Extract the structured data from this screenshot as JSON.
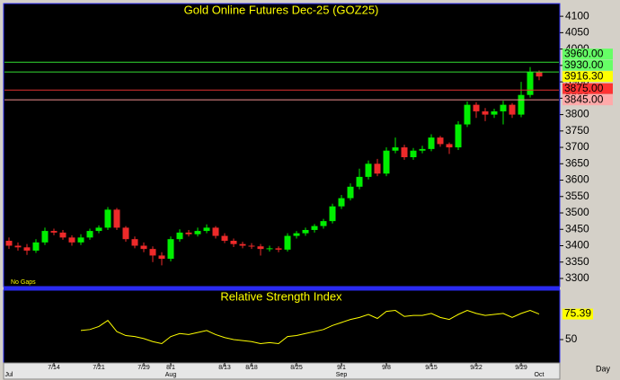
{
  "chart_data": [
    {
      "type": "candlestick",
      "title": "Gold Online Futures Dec-25 (GOZ25)",
      "note": "No Gaps",
      "x_label": "Day",
      "categories": [
        null,
        null,
        null,
        null,
        null,
        "7/14",
        null,
        null,
        null,
        null,
        "7/21",
        null,
        null,
        null,
        null,
        "7/29",
        null,
        null,
        "8/1",
        null,
        null,
        null,
        null,
        null,
        "8/13",
        null,
        null,
        "8/18",
        null,
        null,
        null,
        null,
        "8/25",
        null,
        null,
        null,
        null,
        "9/1",
        null,
        null,
        null,
        null,
        "9/8",
        null,
        null,
        null,
        null,
        "9/15",
        null,
        null,
        null,
        null,
        "9/22",
        null,
        null,
        null,
        null,
        "9/29",
        null,
        null
      ],
      "months": [
        "Jul",
        null,
        null,
        null,
        null,
        null,
        null,
        null,
        null,
        null,
        null,
        null,
        null,
        null,
        null,
        null,
        null,
        null,
        "Aug",
        null,
        null,
        null,
        null,
        null,
        null,
        null,
        null,
        null,
        null,
        null,
        null,
        null,
        null,
        null,
        null,
        null,
        null,
        "Sep",
        null,
        null,
        null,
        null,
        null,
        null,
        null,
        null,
        null,
        null,
        null,
        null,
        null,
        null,
        null,
        null,
        null,
        null,
        null,
        null,
        null,
        "Oct"
      ],
      "open": [
        3415,
        3400,
        3395,
        3385,
        3410,
        3445,
        3440,
        3425,
        3410,
        3425,
        3445,
        3455,
        3510,
        3455,
        3420,
        3400,
        3390,
        3370,
        3360,
        3420,
        3440,
        3435,
        3445,
        3455,
        3430,
        3415,
        3405,
        3400,
        3398,
        3390,
        3392,
        3388,
        3430,
        3438,
        3448,
        3460,
        3475,
        3520,
        3545,
        3580,
        3610,
        3650,
        3620,
        3690,
        3700,
        3670,
        3690,
        3695,
        3730,
        3710,
        3700,
        3770,
        3830,
        3810,
        3800,
        3810,
        3830,
        3800,
        3860,
        3930
      ],
      "high": [
        3425,
        3410,
        3405,
        3420,
        3455,
        3452,
        3448,
        3432,
        3435,
        3452,
        3462,
        3518,
        3515,
        3460,
        3428,
        3410,
        3398,
        3380,
        3428,
        3450,
        3448,
        3455,
        3465,
        3460,
        3438,
        3422,
        3412,
        3408,
        3405,
        3400,
        3398,
        3438,
        3445,
        3455,
        3466,
        3482,
        3528,
        3555,
        3590,
        3635,
        3660,
        3665,
        3700,
        3730,
        3708,
        3698,
        3705,
        3740,
        3735,
        3715,
        3780,
        3840,
        3838,
        3820,
        3818,
        3842,
        3835,
        3900,
        3945,
        3935
      ],
      "low": [
        3390,
        3385,
        3372,
        3378,
        3402,
        3432,
        3418,
        3400,
        3402,
        3418,
        3438,
        3448,
        3448,
        3412,
        3392,
        3380,
        3350,
        3340,
        3352,
        3412,
        3428,
        3428,
        3438,
        3422,
        3408,
        3396,
        3392,
        3390,
        3370,
        3382,
        3380,
        3382,
        3422,
        3430,
        3440,
        3452,
        3468,
        3512,
        3538,
        3572,
        3602,
        3612,
        3612,
        3682,
        3662,
        3662,
        3682,
        3688,
        3702,
        3680,
        3692,
        3762,
        3790,
        3780,
        3790,
        3770,
        3790,
        3792,
        3852,
        3905
      ],
      "close": [
        3400,
        3395,
        3385,
        3410,
        3445,
        3440,
        3425,
        3410,
        3425,
        3445,
        3455,
        3510,
        3455,
        3420,
        3400,
        3390,
        3370,
        3360,
        3420,
        3440,
        3435,
        3445,
        3455,
        3430,
        3415,
        3405,
        3400,
        3398,
        3390,
        3392,
        3388,
        3430,
        3438,
        3448,
        3460,
        3475,
        3520,
        3545,
        3580,
        3610,
        3650,
        3620,
        3690,
        3700,
        3670,
        3690,
        3695,
        3730,
        3710,
        3700,
        3770,
        3830,
        3810,
        3800,
        3810,
        3830,
        3800,
        3860,
        3930,
        3916.3
      ],
      "last_label": "3916.30",
      "last_color": "#ffff00",
      "up_color": "#00ee00",
      "down_color": "#ee2a2a",
      "levels": [
        {
          "value": 3960,
          "label": "3960.00",
          "color": "#33dd33",
          "label_color": "#66ff66"
        },
        {
          "value": 3930,
          "label": "3930.00",
          "color": "#33dd33",
          "label_color": "#66ff66"
        },
        {
          "value": 3875,
          "label": "3875.00",
          "color": "#e03030",
          "label_color": "#ff3333"
        },
        {
          "value": 3845,
          "label": "3845.00",
          "color": "#f09090",
          "label_color": "#ffaaaa"
        }
      ],
      "ylim": [
        3278,
        4136
      ],
      "yticks": [
        3300,
        3350,
        3400,
        3450,
        3500,
        3550,
        3600,
        3650,
        3700,
        3750,
        3800,
        3850,
        3900,
        3950,
        4000,
        4050,
        4100
      ]
    },
    {
      "type": "line",
      "title": "Relative Strength Index",
      "color": "#ffff00",
      "values": [
        null,
        null,
        null,
        null,
        null,
        null,
        null,
        null,
        59,
        60,
        63,
        69,
        58,
        54,
        53,
        51,
        48,
        46,
        53,
        56,
        55,
        57,
        59,
        55,
        52,
        50,
        49,
        48,
        46,
        47,
        46,
        53,
        54,
        56,
        58,
        60,
        64,
        67,
        70,
        72,
        75,
        71,
        78,
        79,
        73,
        74,
        74,
        76,
        72,
        70,
        75,
        79,
        76,
        74,
        75,
        76,
        72,
        76,
        79,
        75.39
      ],
      "ylim": [
        27.7,
        100
      ],
      "yticks": [
        50
      ]
    }
  ]
}
